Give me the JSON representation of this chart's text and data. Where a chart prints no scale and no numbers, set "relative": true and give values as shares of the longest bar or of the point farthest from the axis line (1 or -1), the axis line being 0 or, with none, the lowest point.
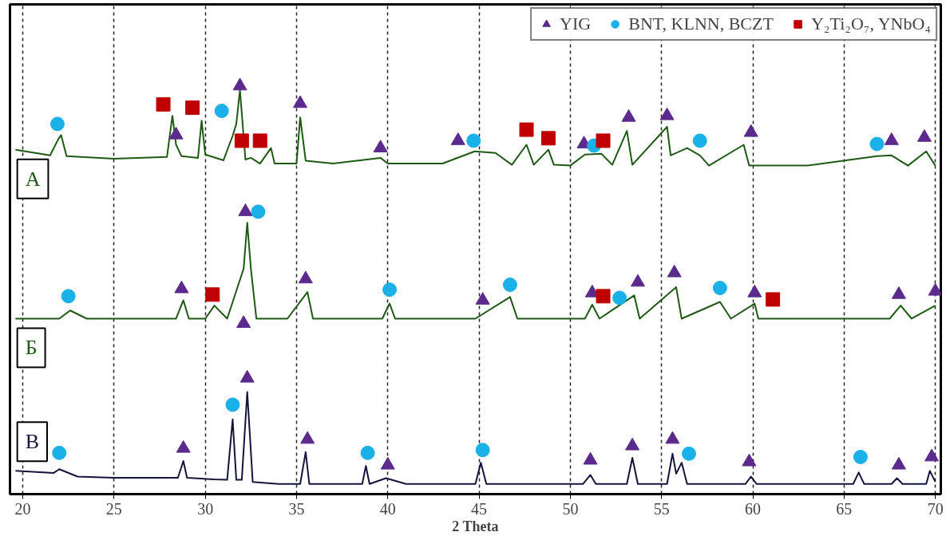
{
  "chart_data": {
    "type": "line",
    "relative": true,
    "xlabel": "2 Theta",
    "xlim": [
      19.3,
      70.3
    ],
    "xticks": [
      20,
      25,
      30,
      35,
      40,
      45,
      50,
      55,
      60,
      65,
      70
    ],
    "grid": "x",
    "legend": "top right",
    "series": [
      {
        "name": "А",
        "color": "#1e5a14",
        "x": [
          19.6,
          21.5,
          21.95,
          22.1,
          22.4,
          25,
          27.9,
          28.2,
          28.4,
          28.7,
          29.6,
          29.8,
          30.0,
          31.0,
          31.5,
          31.7,
          31.9,
          32.2,
          32.5,
          33.0,
          33.6,
          33.8,
          35.0,
          35.2,
          35.5,
          37.0,
          39.6,
          40.0,
          43.0,
          44.76,
          45.9,
          46.8,
          47.6,
          48.0,
          48.8,
          49.1,
          50.0,
          50.8,
          51.7,
          52.3,
          53.1,
          53.4,
          55.3,
          55.5,
          56.4,
          57.1,
          57.6,
          59.5,
          59.8,
          63.0,
          66.8,
          67.6,
          68.5,
          69.5,
          70.0
        ],
        "values": [
          0.844,
          0.83,
          0.87,
          0.88,
          0.828,
          0.822,
          0.826,
          0.927,
          0.856,
          0.828,
          0.824,
          0.915,
          0.832,
          0.818,
          0.878,
          0.907,
          0.99,
          0.82,
          0.824,
          0.81,
          0.848,
          0.81,
          0.81,
          0.923,
          0.817,
          0.81,
          0.824,
          0.81,
          0.81,
          0.84,
          0.836,
          0.807,
          0.856,
          0.807,
          0.844,
          0.807,
          0.805,
          0.832,
          0.834,
          0.807,
          0.89,
          0.807,
          0.9,
          0.83,
          0.848,
          0.83,
          0.805,
          0.856,
          0.805,
          0.805,
          0.828,
          0.83,
          0.805,
          0.84,
          0.805
        ]
      },
      {
        "name": "Б",
        "color": "#1e5a14",
        "x": [
          19.6,
          22.0,
          22.6,
          23.5,
          28.4,
          28.8,
          29.1,
          30.0,
          30.5,
          31.2,
          32.1,
          32.3,
          32.5,
          32.8,
          34.5,
          35.6,
          35.9,
          39.7,
          40.1,
          40.4,
          44.8,
          46.7,
          47.1,
          50.8,
          51.2,
          51.6,
          53.5,
          53.8,
          55.8,
          56.1,
          58.2,
          58.8,
          60.1,
          60.3,
          67.5,
          68.1,
          68.7,
          70.0
        ],
        "values": [
          0.43,
          0.43,
          0.45,
          0.43,
          0.43,
          0.475,
          0.43,
          0.43,
          0.462,
          0.43,
          0.552,
          0.665,
          0.552,
          0.43,
          0.43,
          0.495,
          0.43,
          0.43,
          0.467,
          0.43,
          0.43,
          0.483,
          0.43,
          0.43,
          0.464,
          0.43,
          0.487,
          0.43,
          0.507,
          0.43,
          0.471,
          0.43,
          0.467,
          0.43,
          0.43,
          0.462,
          0.43,
          0.462
        ]
      },
      {
        "name": "В",
        "color": "#14143c",
        "x": [
          19.6,
          21.7,
          22.0,
          23.0,
          25.0,
          28.5,
          28.8,
          29.0,
          30.5,
          31.2,
          31.5,
          31.7,
          32.0,
          32.3,
          32.6,
          34.0,
          35.2,
          35.5,
          35.7,
          38.6,
          38.8,
          39.0,
          39.9,
          41.0,
          44.8,
          45.1,
          45.4,
          50.7,
          51.1,
          51.4,
          53.1,
          53.4,
          53.7,
          55.3,
          55.6,
          55.8,
          56.1,
          56.4,
          59.6,
          59.9,
          60.2,
          65.5,
          65.8,
          66.1,
          67.6,
          67.9,
          68.2,
          69.5,
          69.7,
          70.0
        ],
        "values": [
          0.057,
          0.052,
          0.061,
          0.043,
          0.04,
          0.04,
          0.081,
          0.04,
          0.036,
          0.035,
          0.183,
          0.035,
          0.035,
          0.25,
          0.03,
          0.025,
          0.025,
          0.103,
          0.025,
          0.025,
          0.069,
          0.025,
          0.039,
          0.025,
          0.025,
          0.077,
          0.025,
          0.025,
          0.047,
          0.025,
          0.025,
          0.089,
          0.025,
          0.025,
          0.099,
          0.05,
          0.077,
          0.025,
          0.025,
          0.043,
          0.025,
          0.025,
          0.053,
          0.025,
          0.025,
          0.039,
          0.025,
          0.025,
          0.057,
          0.03
        ]
      },
      {
        "name": "YIG",
        "type": "scatter",
        "marker": "triangle",
        "color": "#5b2a8c",
        "x": [
          28.4,
          31.9,
          35.2,
          39.6,
          43.85,
          50.75,
          53.2,
          55.3,
          59.9,
          67.6,
          69.4,
          28.7,
          32.2,
          32.1,
          35.5,
          45.2,
          51.2,
          53.7,
          55.7,
          60.1,
          68.0,
          70.0,
          28.8,
          32.3,
          35.6,
          40.0,
          51.1,
          53.4,
          55.6,
          59.8,
          68.0,
          69.8
        ],
        "values": [
          0.88,
          1.0,
          0.957,
          0.848,
          0.866,
          0.858,
          0.923,
          0.927,
          0.886,
          0.866,
          0.874,
          0.503,
          0.692,
          0.418,
          0.527,
          0.475,
          0.493,
          0.519,
          0.542,
          0.493,
          0.489,
          0.497,
          0.112,
          0.284,
          0.134,
          0.071,
          0.083,
          0.118,
          0.134,
          0.079,
          0.071,
          0.091
        ]
      },
      {
        "name": "BNT, KLNN, BCZT",
        "type": "scatter",
        "marker": "circle",
        "color": "#1ab0e8",
        "x": [
          21.9,
          30.9,
          44.7,
          51.3,
          57.1,
          66.8,
          22.5,
          32.9,
          40.1,
          46.7,
          52.7,
          58.2,
          22.0,
          31.5,
          38.9,
          45.2,
          56.5,
          65.9
        ],
        "values": [
          0.907,
          0.939,
          0.866,
          0.854,
          0.866,
          0.858,
          0.485,
          0.692,
          0.501,
          0.513,
          0.481,
          0.505,
          0.101,
          0.219,
          0.101,
          0.108,
          0.099,
          0.091
        ]
      },
      {
        "name": "Y₂Ti₂O₇, YNbO₄",
        "type": "scatter",
        "marker": "square",
        "color": "#c00000",
        "x": [
          27.7,
          29.3,
          32.0,
          33.0,
          47.6,
          48.8,
          51.8,
          30.4,
          51.8,
          61.1
        ],
        "values": [
          0.955,
          0.947,
          0.866,
          0.866,
          0.893,
          0.872,
          0.866,
          0.489,
          0.485,
          0.477
        ]
      }
    ]
  }
}
